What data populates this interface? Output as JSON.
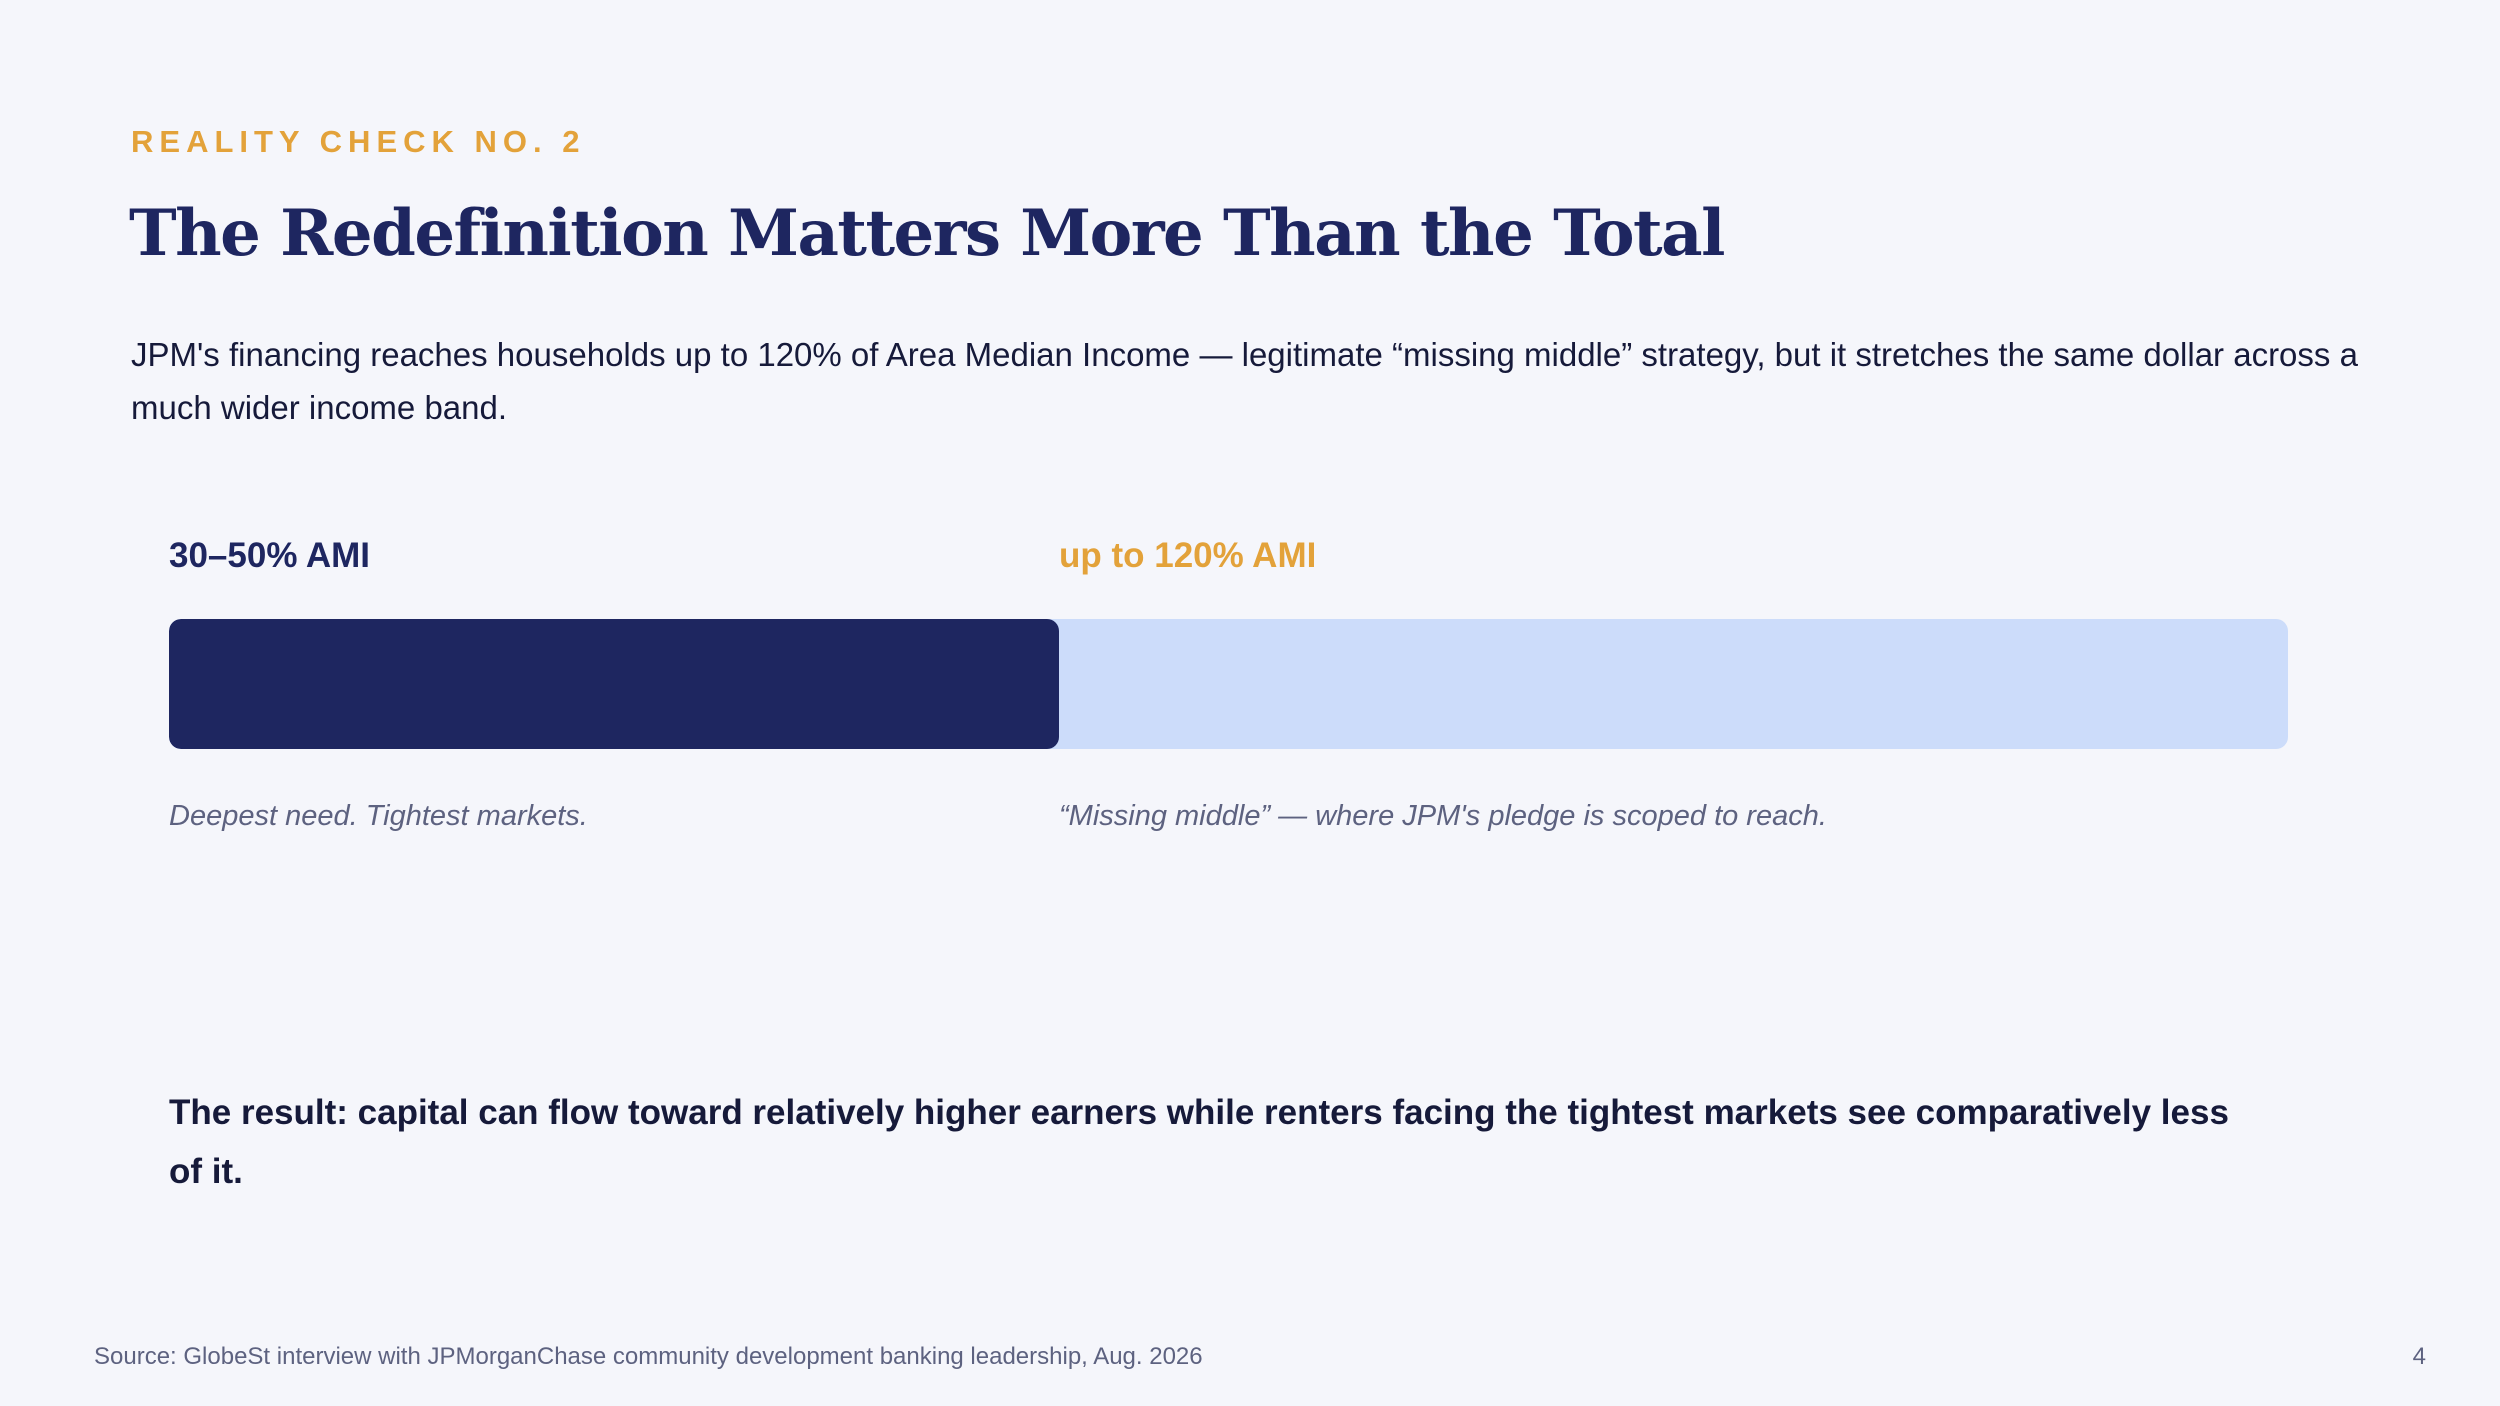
{
  "slide": {
    "eyebrow": "REALITY CHECK NO. 2",
    "title": "The Redefinition Matters More Than the Total",
    "intro": "JPM's financing reaches households up to 120% of Area Median Income — legitimate “missing middle” strategy, but it stretches the same dollar across a much wider income band.",
    "result": "The result: capital can flow toward relatively higher earners while renters facing the tightest markets see comparatively less of it.",
    "source": "Source: GlobeSt interview with JPMorganChase community development banking leadership, Aug. 2026",
    "page_number": "4"
  },
  "income_bands": {
    "deep": {
      "label": "30–50% AMI",
      "caption": "Deepest need. Tightest markets.",
      "share_of_bar": 0.42,
      "color": "#1e2660"
    },
    "expanded": {
      "label": "up to 120% AMI",
      "caption": "“Missing middle” — where JPM's pledge is scoped to reach.",
      "color": "#ccdcfa",
      "label_color": "#e3a23a"
    }
  },
  "colors": {
    "accent": "#e3a23a",
    "navy": "#1e2660",
    "background": "#f5f6fb",
    "muted": "#5d6280"
  }
}
